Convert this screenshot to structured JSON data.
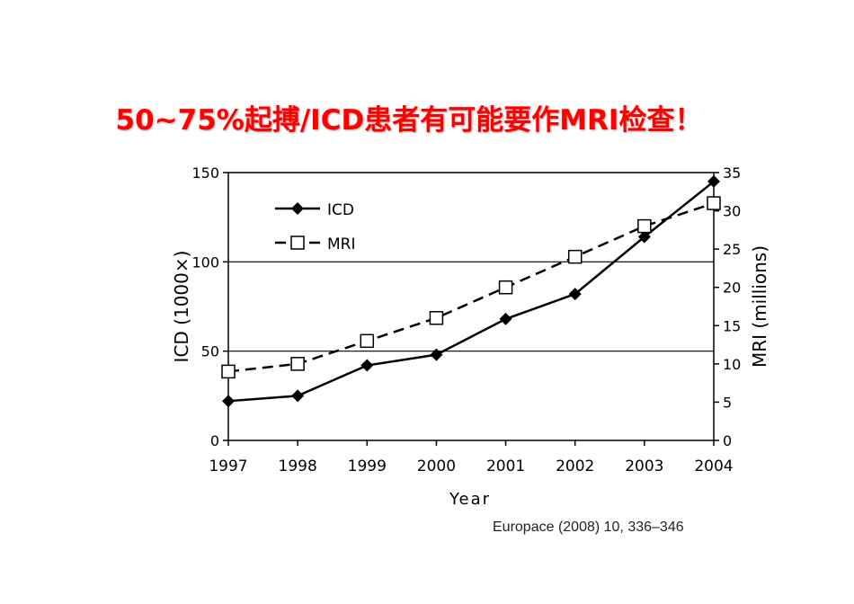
{
  "slide": {
    "title": "50~75%起搏/ICD患者有可能要作MRI检查！",
    "title_color": "#ff0000",
    "citation": "Europace (2008) 10, 336–346"
  },
  "chart_data": {
    "type": "line",
    "title": "",
    "xlabel": "Year",
    "ylabel": "ICD (1000×)",
    "y2label": "MRI (millions)",
    "categories": [
      "1997",
      "1998",
      "1999",
      "2000",
      "2001",
      "2002",
      "2003",
      "2004"
    ],
    "ylim": [
      0,
      150
    ],
    "yticks": [
      0,
      50,
      100,
      150
    ],
    "y2lim": [
      0,
      35
    ],
    "y2ticks": [
      0,
      5,
      10,
      15,
      20,
      25,
      30,
      35
    ],
    "grid": "horizontal at 50 and 100",
    "legend_position": "top-left",
    "series": [
      {
        "name": "ICD",
        "axis": "left",
        "marker": "filled-diamond",
        "line": "solid",
        "values": [
          22,
          25,
          42,
          48,
          68,
          82,
          114,
          145
        ]
      },
      {
        "name": "MRI",
        "axis": "right",
        "marker": "open-square",
        "line": "dashed",
        "values": [
          9,
          10,
          13,
          16,
          20,
          24,
          28,
          31
        ]
      }
    ]
  }
}
